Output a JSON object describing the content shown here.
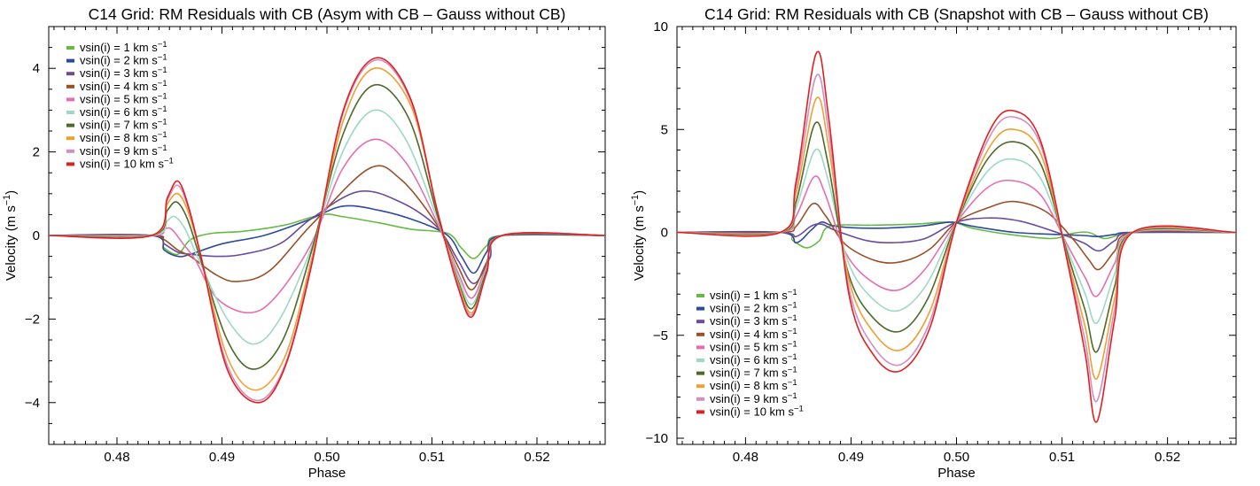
{
  "legend_entries": [
    {
      "label": "vsin(i) = 1 km s",
      "exp": "−1",
      "color": "#66bb44"
    },
    {
      "label": "vsin(i) = 2 km s",
      "exp": "−1",
      "color": "#2e4a9a"
    },
    {
      "label": "vsin(i) = 3 km s",
      "exp": "−1",
      "color": "#6a4c9c"
    },
    {
      "label": "vsin(i) = 4 km s",
      "exp": "−1",
      "color": "#9a5028"
    },
    {
      "label": "vsin(i) = 5 km s",
      "exp": "−1",
      "color": "#e56fae"
    },
    {
      "label": "vsin(i) = 6 km s",
      "exp": "−1",
      "color": "#9ed8c6"
    },
    {
      "label": "vsin(i) = 7 km s",
      "exp": "−1",
      "color": "#4e6a2c"
    },
    {
      "label": "vsin(i) = 8 km s",
      "exp": "−1",
      "color": "#f0a030"
    },
    {
      "label": "vsin(i) = 9 km s",
      "exp": "−1",
      "color": "#d48ec0"
    },
    {
      "label": "vsin(i) = 10 km s",
      "exp": "−1",
      "color": "#e02020"
    }
  ],
  "chart_data": [
    {
      "type": "line",
      "title": "C14 Grid: RM Residuals with CB (Asym with CB – Gauss without CB)",
      "xlabel": "Phase",
      "ylabel": "Velocity (m s",
      "ylabel_exp": "−1",
      "xlim": [
        0.4735,
        0.5265
      ],
      "ylim": [
        -5.0,
        5.0
      ],
      "xticks": [
        0.48,
        0.49,
        0.5,
        0.51,
        0.52
      ],
      "xtick_labels": [
        "0.48",
        "0.49",
        "0.50",
        "0.51",
        "0.52"
      ],
      "yticks": [
        -4,
        -2,
        0,
        2,
        4
      ],
      "ytick_labels": [
        "−4",
        "−2",
        "0",
        "2",
        "4"
      ],
      "legend_position": "top-left",
      "series": [
        {
          "name": "vsin(i) = 1 km s−1",
          "color": "#66bb44",
          "x": [
            0.4735,
            0.4833,
            0.4845,
            0.4858,
            0.487,
            0.489,
            0.492,
            0.496,
            0.4995,
            0.5015,
            0.505,
            0.508,
            0.5115,
            0.5128,
            0.514,
            0.5152,
            0.5167,
            0.5265
          ],
          "y": [
            0,
            0,
            -0.3,
            -0.45,
            -0.1,
            0.05,
            0.1,
            0.25,
            0.5,
            0.45,
            0.3,
            0.15,
            0.05,
            -0.3,
            -0.55,
            -0.25,
            0,
            0
          ]
        },
        {
          "name": "vsin(i) = 2 km s−1",
          "color": "#2e4a9a",
          "x": [
            0.4735,
            0.4833,
            0.4845,
            0.4858,
            0.487,
            0.49,
            0.494,
            0.498,
            0.5015,
            0.505,
            0.5085,
            0.5115,
            0.5128,
            0.514,
            0.5152,
            0.5167,
            0.5265
          ],
          "y": [
            0,
            0,
            -0.35,
            -0.5,
            -0.45,
            -0.2,
            0.0,
            0.35,
            0.7,
            0.6,
            0.35,
            0.0,
            -0.5,
            -0.9,
            -0.4,
            0,
            0
          ]
        },
        {
          "name": "vsin(i) = 3 km s−1",
          "color": "#6a4c9c",
          "x": [
            0.4735,
            0.4833,
            0.4845,
            0.4858,
            0.487,
            0.4895,
            0.492,
            0.4955,
            0.4985,
            0.503,
            0.507,
            0.5105,
            0.5125,
            0.514,
            0.5155,
            0.5167,
            0.5265
          ],
          "y": [
            0,
            0,
            -0.2,
            -0.4,
            -0.45,
            -0.5,
            -0.45,
            -0.2,
            0.4,
            1.05,
            0.8,
            0.2,
            -0.6,
            -1.15,
            -0.55,
            0,
            0
          ]
        },
        {
          "name": "vsin(i) = 4 km s−1",
          "color": "#9a5028",
          "x": [
            0.4735,
            0.4833,
            0.4845,
            0.4858,
            0.487,
            0.4895,
            0.4915,
            0.4945,
            0.4985,
            0.504,
            0.507,
            0.5105,
            0.5125,
            0.5138,
            0.5152,
            0.5167,
            0.5265
          ],
          "y": [
            0,
            0,
            -0.1,
            -0.35,
            -0.5,
            -0.95,
            -1.1,
            -0.85,
            0.25,
            1.6,
            1.35,
            0.25,
            -0.75,
            -1.3,
            -0.65,
            0,
            0
          ]
        },
        {
          "name": "vsin(i) = 5 km s−1",
          "color": "#e56fae",
          "x": [
            0.4735,
            0.4833,
            0.4845,
            0.4852,
            0.4863,
            0.4875,
            0.4895,
            0.4925,
            0.495,
            0.4985,
            0.5015,
            0.5045,
            0.5075,
            0.5105,
            0.5125,
            0.5138,
            0.5152,
            0.5167,
            0.5265
          ],
          "y": [
            0,
            0,
            0.15,
            0.15,
            -0.2,
            -0.6,
            -1.5,
            -1.85,
            -1.5,
            -0.2,
            1.6,
            2.3,
            1.75,
            0.3,
            -0.9,
            -1.5,
            -0.75,
            0,
            0
          ]
        },
        {
          "name": "vsin(i) = 6 km s−1",
          "color": "#9ed8c6",
          "x": [
            0.4735,
            0.4833,
            0.4848,
            0.4855,
            0.4865,
            0.488,
            0.4905,
            0.493,
            0.4955,
            0.4985,
            0.5015,
            0.5045,
            0.5075,
            0.5105,
            0.5125,
            0.5138,
            0.5152,
            0.5167,
            0.5265
          ],
          "y": [
            0,
            0,
            0.35,
            0.45,
            0.15,
            -0.7,
            -2.0,
            -2.6,
            -2.0,
            -0.3,
            2.0,
            3.0,
            2.3,
            0.4,
            -1.0,
            -1.65,
            -0.8,
            0,
            0
          ]
        },
        {
          "name": "vsin(i) = 7 km s−1",
          "color": "#4e6a2c",
          "x": [
            0.4735,
            0.4833,
            0.4848,
            0.4857,
            0.4867,
            0.488,
            0.4905,
            0.493,
            0.4958,
            0.4985,
            0.5015,
            0.5045,
            0.5078,
            0.5105,
            0.5125,
            0.5138,
            0.5152,
            0.5167,
            0.5265
          ],
          "y": [
            0,
            0,
            0.6,
            0.8,
            0.4,
            -0.6,
            -2.5,
            -3.2,
            -2.5,
            -0.4,
            2.4,
            3.6,
            2.8,
            0.5,
            -1.1,
            -1.75,
            -0.85,
            0,
            0
          ]
        },
        {
          "name": "vsin(i) = 8 km s−1",
          "color": "#f0a030",
          "x": [
            0.4735,
            0.4833,
            0.4848,
            0.4858,
            0.4868,
            0.488,
            0.4905,
            0.4932,
            0.496,
            0.4985,
            0.5015,
            0.5045,
            0.508,
            0.5105,
            0.5125,
            0.5138,
            0.5152,
            0.5167,
            0.5265
          ],
          "y": [
            0,
            0,
            0.75,
            1.0,
            0.55,
            -0.5,
            -2.9,
            -3.7,
            -2.9,
            -0.6,
            2.7,
            4.0,
            3.1,
            0.6,
            -1.15,
            -1.85,
            -0.9,
            0,
            0
          ]
        },
        {
          "name": "vsin(i) = 9 km s−1",
          "color": "#d48ec0",
          "x": [
            0.4735,
            0.4833,
            0.4848,
            0.4858,
            0.4868,
            0.488,
            0.4905,
            0.4934,
            0.496,
            0.4985,
            0.5015,
            0.5047,
            0.508,
            0.5105,
            0.5125,
            0.5138,
            0.5152,
            0.5167,
            0.5265
          ],
          "y": [
            0,
            0,
            0.85,
            1.2,
            0.65,
            -0.5,
            -3.1,
            -3.95,
            -3.1,
            -0.7,
            2.9,
            4.2,
            3.2,
            0.6,
            -1.2,
            -1.9,
            -0.9,
            0,
            0
          ]
        },
        {
          "name": "vsin(i) = 10 km s−1",
          "color": "#e02020",
          "x": [
            0.4735,
            0.4833,
            0.4848,
            0.4858,
            0.4868,
            0.488,
            0.4905,
            0.4935,
            0.496,
            0.4985,
            0.5015,
            0.5047,
            0.508,
            0.5105,
            0.5125,
            0.5138,
            0.5152,
            0.5167,
            0.5265
          ],
          "y": [
            0,
            0,
            0.9,
            1.3,
            0.7,
            -0.5,
            -3.2,
            -4.0,
            -3.15,
            -0.75,
            2.95,
            4.25,
            3.25,
            0.6,
            -1.25,
            -1.95,
            -0.9,
            0,
            0
          ]
        }
      ]
    },
    {
      "type": "line",
      "title": "C14 Grid: RM Residuals with CB (Snapshot with CB – Gauss without CB)",
      "xlabel": "Phase",
      "ylabel": "Velocity (m s",
      "ylabel_exp": "−1",
      "xlim": [
        0.4735,
        0.5265
      ],
      "ylim": [
        -10.3,
        10.0
      ],
      "xticks": [
        0.48,
        0.49,
        0.5,
        0.51,
        0.52
      ],
      "xtick_labels": [
        "0.48",
        "0.49",
        "0.50",
        "0.51",
        "0.52"
      ],
      "yticks": [
        -10,
        -5,
        0,
        5,
        10
      ],
      "ytick_labels": [
        "−10",
        "−5",
        "0",
        "5",
        "10"
      ],
      "legend_position": "bottom-left",
      "series": [
        {
          "name": "vsin(i) = 1 km s−1",
          "color": "#66bb44",
          "x": [
            0.4735,
            0.4833,
            0.4845,
            0.4858,
            0.487,
            0.488,
            0.492,
            0.496,
            0.4995,
            0.5015,
            0.505,
            0.509,
            0.511,
            0.5125,
            0.514,
            0.5155,
            0.5167,
            0.5265
          ],
          "y": [
            0,
            0,
            -0.4,
            -0.75,
            -0.4,
            0.3,
            0.35,
            0.4,
            0.5,
            0.2,
            -0.1,
            -0.3,
            -0.05,
            0.0,
            -0.3,
            -0.1,
            0,
            0
          ]
        },
        {
          "name": "vsin(i) = 2 km s−1",
          "color": "#2e4a9a",
          "x": [
            0.4735,
            0.4833,
            0.4848,
            0.4862,
            0.4872,
            0.4885,
            0.492,
            0.4965,
            0.4995,
            0.5015,
            0.5055,
            0.5095,
            0.512,
            0.5135,
            0.515,
            0.5167,
            0.5265
          ],
          "y": [
            0,
            0,
            -0.5,
            0.1,
            0.5,
            0.3,
            0.2,
            0.3,
            0.5,
            0.3,
            0.0,
            -0.1,
            -0.15,
            -0.2,
            -0.1,
            0,
            0
          ]
        },
        {
          "name": "vsin(i) = 3 km s−1",
          "color": "#6a4c9c",
          "x": [
            0.4735,
            0.4833,
            0.4848,
            0.4862,
            0.4872,
            0.4885,
            0.4915,
            0.494,
            0.497,
            0.5,
            0.503,
            0.506,
            0.5095,
            0.512,
            0.5135,
            0.515,
            0.5167,
            0.5265
          ],
          "y": [
            0,
            0,
            -0.2,
            0.3,
            0.4,
            0.1,
            -0.4,
            -0.5,
            -0.3,
            0.5,
            0.7,
            0.55,
            0.0,
            -0.5,
            -0.9,
            -0.4,
            0,
            0
          ]
        },
        {
          "name": "vsin(i) = 4 km s−1",
          "color": "#9a5028",
          "x": [
            0.4735,
            0.4833,
            0.4848,
            0.4864,
            0.4876,
            0.4895,
            0.4925,
            0.495,
            0.4975,
            0.5,
            0.503,
            0.5055,
            0.5085,
            0.511,
            0.5125,
            0.5135,
            0.515,
            0.5167,
            0.5265
          ],
          "y": [
            0,
            0,
            0.3,
            1.4,
            0.8,
            -0.6,
            -1.4,
            -1.4,
            -0.8,
            0.5,
            1.2,
            1.5,
            1.0,
            -0.3,
            -1.3,
            -1.8,
            -0.9,
            0,
            0
          ]
        },
        {
          "name": "vsin(i) = 5 km s−1",
          "color": "#e56fae",
          "x": [
            0.4735,
            0.4833,
            0.4848,
            0.4865,
            0.4876,
            0.4895,
            0.492,
            0.4945,
            0.497,
            0.5,
            0.503,
            0.5055,
            0.508,
            0.5105,
            0.5122,
            0.5133,
            0.515,
            0.5167,
            0.5265
          ],
          "y": [
            0,
            0,
            0.8,
            2.7,
            1.8,
            -1.0,
            -2.4,
            -2.8,
            -1.8,
            0.5,
            2.2,
            2.5,
            1.8,
            -0.6,
            -2.2,
            -3.1,
            -1.5,
            0,
            0
          ]
        },
        {
          "name": "vsin(i) = 6 km s−1",
          "color": "#9ed8c6",
          "x": [
            0.4735,
            0.4833,
            0.4848,
            0.4866,
            0.4878,
            0.4897,
            0.492,
            0.4945,
            0.4972,
            0.5,
            0.503,
            0.5055,
            0.508,
            0.5105,
            0.5122,
            0.5133,
            0.515,
            0.5167,
            0.5265
          ],
          "y": [
            0,
            0,
            1.2,
            4.0,
            2.6,
            -1.4,
            -3.2,
            -3.8,
            -2.5,
            0.5,
            3.0,
            3.55,
            2.6,
            -0.8,
            -3.0,
            -4.4,
            -2.0,
            0,
            0
          ]
        },
        {
          "name": "vsin(i) = 7 km s−1",
          "color": "#4e6a2c",
          "x": [
            0.4735,
            0.4833,
            0.4848,
            0.4866,
            0.4878,
            0.4897,
            0.492,
            0.4947,
            0.4973,
            0.5,
            0.503,
            0.5055,
            0.508,
            0.5105,
            0.5122,
            0.5133,
            0.515,
            0.5167,
            0.5265
          ],
          "y": [
            0,
            0,
            1.5,
            5.3,
            3.4,
            -1.9,
            -4.1,
            -4.8,
            -3.2,
            0.5,
            3.6,
            4.4,
            3.3,
            -1.0,
            -3.8,
            -5.8,
            -2.6,
            0,
            0
          ]
        },
        {
          "name": "vsin(i) = 8 km s−1",
          "color": "#f0a030",
          "x": [
            0.4735,
            0.4833,
            0.4848,
            0.4867,
            0.4879,
            0.4898,
            0.4922,
            0.4948,
            0.4975,
            0.5,
            0.5032,
            0.5055,
            0.508,
            0.5105,
            0.5122,
            0.5133,
            0.515,
            0.5167,
            0.5265
          ],
          "y": [
            0,
            0,
            1.9,
            6.5,
            4.1,
            -2.3,
            -4.9,
            -5.7,
            -3.8,
            0.5,
            4.2,
            5.0,
            3.8,
            -1.2,
            -4.6,
            -7.1,
            -3.2,
            0,
            0
          ]
        },
        {
          "name": "vsin(i) = 9 km s−1",
          "color": "#d48ec0",
          "x": [
            0.4735,
            0.4833,
            0.4848,
            0.4867,
            0.4879,
            0.4898,
            0.4922,
            0.4948,
            0.4975,
            0.5,
            0.5032,
            0.5055,
            0.508,
            0.5105,
            0.5122,
            0.5133,
            0.515,
            0.5167,
            0.5265
          ],
          "y": [
            0,
            0,
            2.2,
            7.6,
            4.8,
            -2.7,
            -5.6,
            -6.4,
            -4.3,
            0.5,
            4.7,
            5.6,
            4.2,
            -1.3,
            -5.3,
            -8.2,
            -3.7,
            0,
            0
          ]
        },
        {
          "name": "vsin(i) = 10 km s−1",
          "color": "#e02020",
          "x": [
            0.4735,
            0.4833,
            0.4848,
            0.4867,
            0.4879,
            0.4898,
            0.4922,
            0.4948,
            0.4975,
            0.5,
            0.5032,
            0.5055,
            0.508,
            0.5105,
            0.5122,
            0.5133,
            0.515,
            0.5167,
            0.5265
          ],
          "y": [
            0,
            0,
            2.5,
            8.7,
            5.5,
            -3.0,
            -6.0,
            -6.7,
            -4.6,
            0.5,
            5.0,
            5.9,
            4.4,
            -1.4,
            -5.9,
            -9.2,
            -4.2,
            0,
            0
          ]
        }
      ]
    }
  ]
}
